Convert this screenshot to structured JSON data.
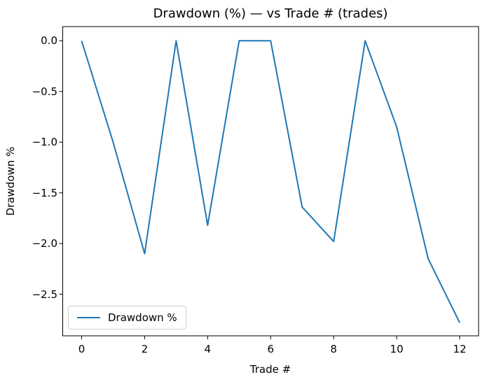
{
  "chart_data": {
    "type": "line",
    "title": "Drawdown (%) — vs Trade # (trades)",
    "xlabel": "Trade #",
    "ylabel": "Drawdown %",
    "x": [
      0,
      1,
      2,
      3,
      4,
      5,
      6,
      7,
      8,
      9,
      10,
      11,
      12
    ],
    "series": [
      {
        "name": "Drawdown %",
        "color": "#1f77b4",
        "values": [
          0.0,
          -1.0,
          -2.1,
          0.0,
          -1.82,
          0.0,
          0.0,
          -1.64,
          -1.98,
          0.0,
          -0.85,
          -2.15,
          -2.78
        ]
      }
    ],
    "xlim": [
      -0.6,
      12.6
    ],
    "ylim": [
      -2.91,
      0.14
    ],
    "xticks": [
      0,
      2,
      4,
      6,
      8,
      10,
      12
    ],
    "xticklabels": [
      "0",
      "2",
      "4",
      "6",
      "8",
      "10",
      "12"
    ],
    "yticks": [
      0,
      -0.5,
      -1,
      -1.5,
      -2,
      -2.5
    ],
    "yticklabels": [
      "0.0",
      "−0.5",
      "−1.0",
      "−1.5",
      "−2.0",
      "−2.5"
    ],
    "grid": false,
    "legend": {
      "label": "Drawdown %",
      "position": "lower left"
    },
    "colors": {
      "line": "#1f77b4",
      "text": "#000000",
      "spine": "#000000",
      "legend_border": "#d0d0d0"
    }
  }
}
